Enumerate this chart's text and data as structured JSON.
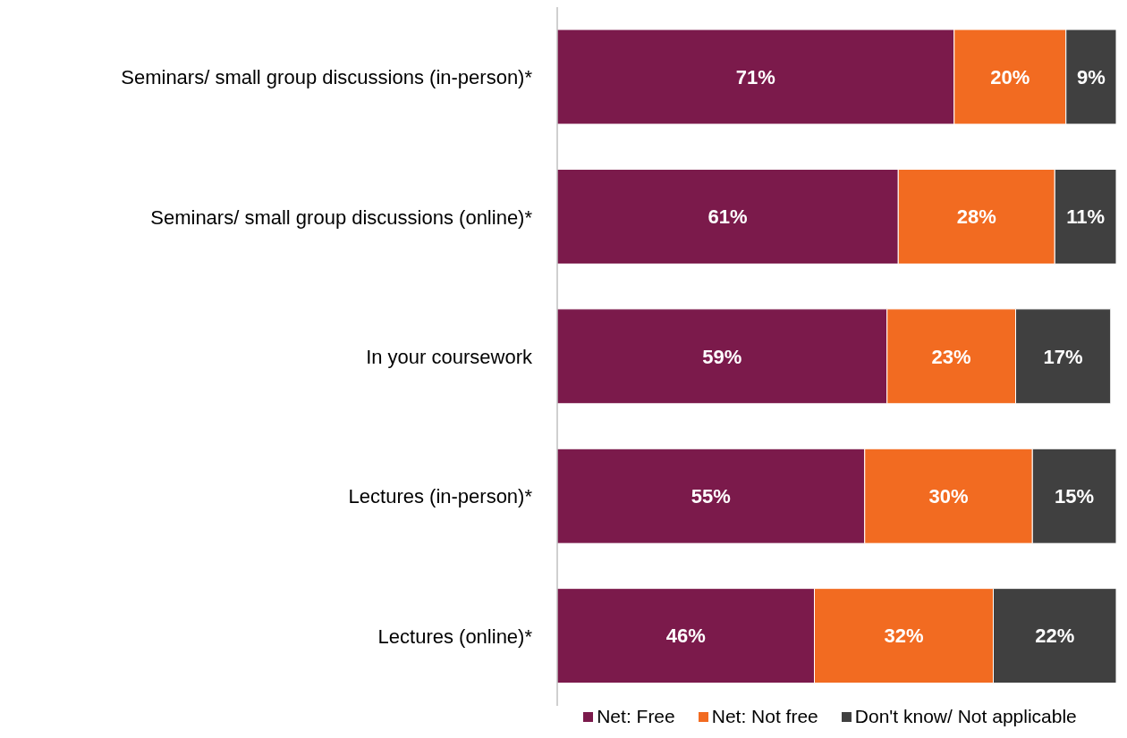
{
  "chart_data": {
    "type": "bar",
    "orientation": "horizontal",
    "stacked": true,
    "categories": [
      "Seminars/ small group discussions (in-person)*",
      "Seminars/ small group discussions (online)*",
      "In your coursework",
      "Lectures (in-person)*",
      "Lectures (online)*"
    ],
    "series": [
      {
        "name": "Net: Free",
        "color": "#7b1a4b",
        "values": [
          71,
          61,
          59,
          55,
          46
        ],
        "value_labels": [
          "71%",
          "61%",
          "59%",
          "55%",
          "46%"
        ]
      },
      {
        "name": "Net: Not free",
        "color": "#f26b21",
        "values": [
          20,
          28,
          23,
          30,
          32
        ],
        "value_labels": [
          "20%",
          "28%",
          "23%",
          "30%",
          "32%"
        ]
      },
      {
        "name": "Don't know/ Not applicable",
        "color": "#404040",
        "values": [
          9,
          11,
          17,
          15,
          22
        ],
        "value_labels": [
          "9%",
          "11%",
          "17%",
          "15%",
          "22%"
        ]
      }
    ],
    "xlim": [
      0,
      100
    ],
    "grid": false,
    "legend": "bottom",
    "tick_labels": "y"
  }
}
